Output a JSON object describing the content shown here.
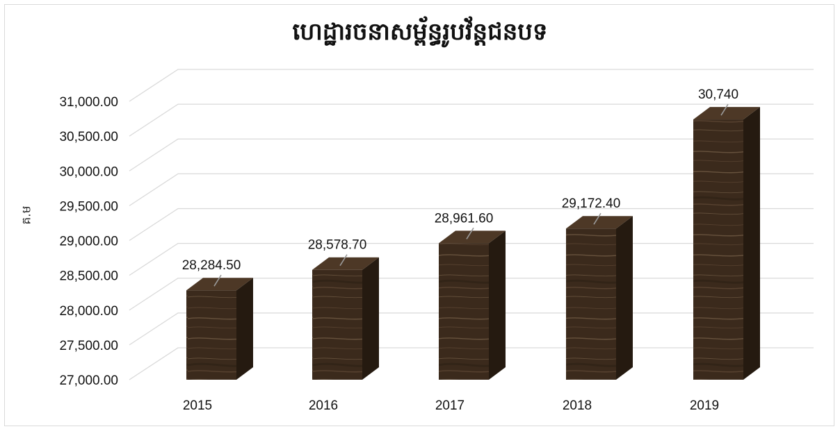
{
  "chart_data": {
    "type": "bar",
    "title": "ហេដ្ឋារចនាសម្ព័ន្ធរូបវ័ន្តជនបទ",
    "ylabel": "គ.ម",
    "xlabel": "",
    "categories": [
      "2015",
      "2016",
      "2017",
      "2018",
      "2019"
    ],
    "values": [
      28284.5,
      28578.7,
      28961.6,
      29172.4,
      30740
    ],
    "data_labels": [
      "28,284.50",
      "28,578.70",
      "28,961.60",
      "29,172.40",
      "30,740"
    ],
    "ylim": [
      27000,
      31000
    ],
    "y_ticks": [
      "27,000.00",
      "27,500.00",
      "28,000.00",
      "28,500.00",
      "29,000.00",
      "29,500.00",
      "30,000.00",
      "30,500.00",
      "31,000.00"
    ],
    "grid": true,
    "style": "3d-column",
    "colors": {
      "bar_front": "#3b2a1c",
      "bar_side": "#251a10",
      "bar_top": "#4d3826",
      "grid": "#d9d9d9",
      "grain": "#8a7258"
    }
  }
}
